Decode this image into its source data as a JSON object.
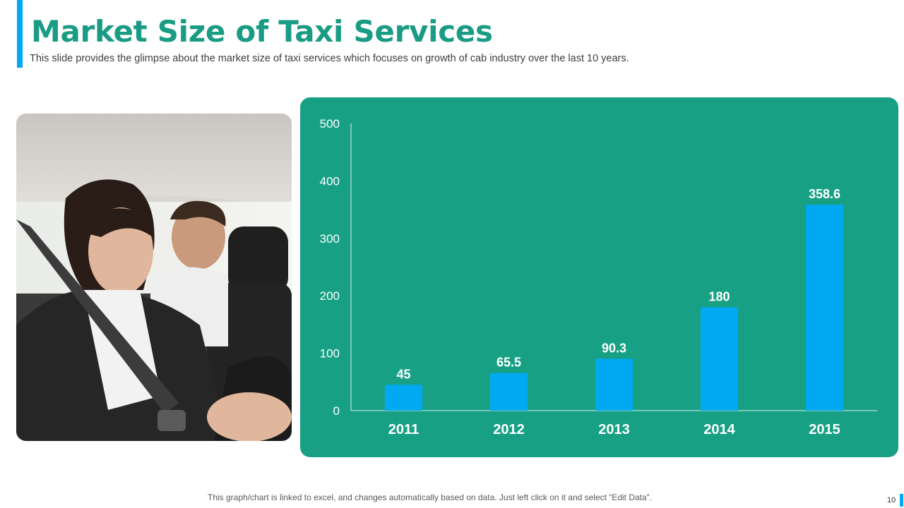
{
  "header": {
    "title": "Market Size of Taxi Services",
    "subtitle": "This slide provides the glimpse about the market size of taxi services which focuses on growth of cab industry over the last 10 years."
  },
  "footer": {
    "note": "This graph/chart is linked to excel, and changes automatically based on data. Just left click on it and select “Edit Data”.",
    "page_number": "10"
  },
  "colors": {
    "title": "#1a9c84",
    "panel": "#18a085",
    "bar": "#00a9f1",
    "accent": "#00a9f1"
  },
  "chart_data": {
    "type": "bar",
    "title": "",
    "xlabel": "",
    "ylabel": "",
    "categories": [
      "2011",
      "2012",
      "2013",
      "2014",
      "2015"
    ],
    "values": [
      45,
      65.5,
      90.3,
      180,
      358.6
    ],
    "data_labels": [
      "45",
      "65.5",
      "90.3",
      "180",
      "358.6"
    ],
    "ylim": [
      0,
      500
    ],
    "yticks": [
      0,
      100,
      200,
      300,
      400,
      500
    ],
    "grid": false
  }
}
